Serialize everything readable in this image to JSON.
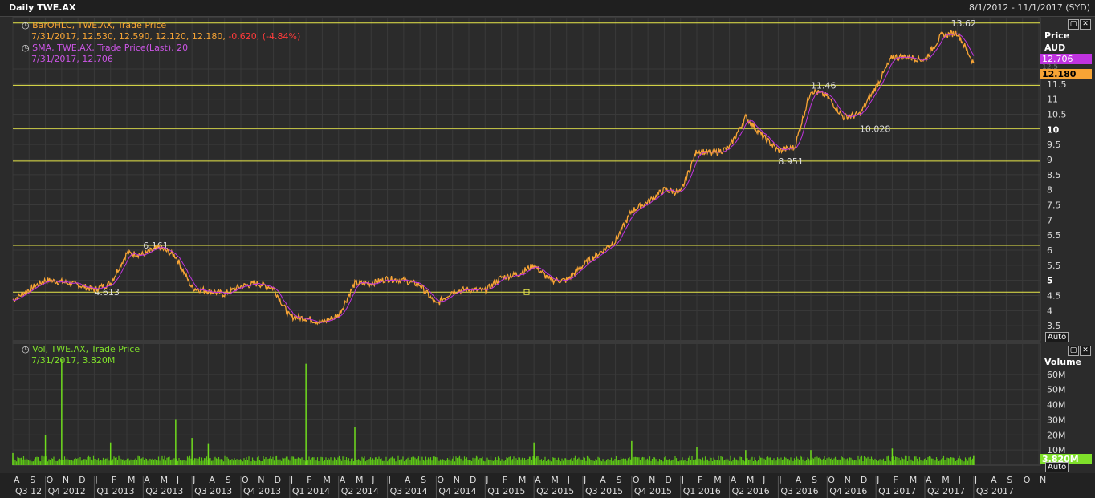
{
  "window": {
    "title": "Daily TWE.AX",
    "date_range": "8/1/2012 - 11/1/2017 (SYD)"
  },
  "price_panel": {
    "legend": [
      {
        "text": "BarOHLC, TWE.AX, Trade Price",
        "color": "#f7a435"
      },
      {
        "text": "7/31/2017, 12.530, 12.590, 12.120, 12.180,",
        "color": "#f7a435",
        "extra": " -0.620, (-4.84%)",
        "extra_color": "#ff3b3b"
      },
      {
        "text": "SMA, TWE.AX, Trade Price(Last),  20",
        "color": "#cc55e6"
      },
      {
        "text": "7/31/2017, 12.706",
        "color": "#cc55e6"
      }
    ],
    "axis_title": "Price",
    "axis_unit": "AUD",
    "auto_label": "Auto",
    "sma_tag": "12.706",
    "last_tag": "12.180",
    "hidden_tag": "12.5"
  },
  "volume_panel": {
    "legend": [
      {
        "text": "Vol, TWE.AX, Trade Price",
        "color": "#7fe02a"
      },
      {
        "text": "7/31/2017, 3.820M",
        "color": "#7fe02a"
      }
    ],
    "axis_title": "Volume",
    "last_tag": "3.820M",
    "auto_label": "Auto"
  },
  "chart_data": {
    "type": "line",
    "ylabel": "Price AUD",
    "ylim": [
      3.0,
      13.7
    ],
    "price_ticks": [
      "3.5",
      "4",
      "4.5",
      "5",
      "5.5",
      "6",
      "6.5",
      "7",
      "7.5",
      "8",
      "8.5",
      "9",
      "9.5",
      "10",
      "10.5",
      "11",
      "11.5",
      "12"
    ],
    "bold_ticks": [
      "5",
      "10"
    ],
    "months": [
      "A",
      "S",
      "O",
      "N",
      "D",
      "J",
      "F",
      "M",
      "A",
      "M",
      "J",
      "J",
      "A",
      "S",
      "O",
      "N",
      "D",
      "J",
      "F",
      "M",
      "A",
      "M",
      "J",
      "J",
      "A",
      "S",
      "O",
      "N",
      "D",
      "J",
      "F",
      "M",
      "A",
      "M",
      "J",
      "J",
      "A",
      "S",
      "O",
      "N",
      "D",
      "J",
      "F",
      "M",
      "A",
      "M",
      "J",
      "J",
      "A",
      "S",
      "O",
      "N",
      "D",
      "J",
      "F",
      "M",
      "A",
      "M",
      "J",
      "J",
      "A",
      "S",
      "O",
      "N"
    ],
    "quarters": [
      "Q3 12",
      "Q4 2012",
      "Q1 2013",
      "Q2 2013",
      "Q3 2013",
      "Q4 2013",
      "Q1 2014",
      "Q2 2014",
      "Q3 2014",
      "Q4 2014",
      "Q1 2015",
      "Q2 2015",
      "Q3 2015",
      "Q4 2015",
      "Q1 2016",
      "Q2 2016",
      "Q3 2016",
      "Q4 2016",
      "Q1 2017",
      "Q2 2017",
      "Q3 2017"
    ],
    "price_series": {
      "name": "TWE.AX Trade Price",
      "x": [
        "2012-08",
        "2012-09",
        "2012-10",
        "2012-11",
        "2012-12",
        "2013-01",
        "2013-02",
        "2013-03",
        "2013-04",
        "2013-05",
        "2013-06",
        "2013-07",
        "2013-08",
        "2013-09",
        "2013-10",
        "2013-11",
        "2013-12",
        "2014-01",
        "2014-02",
        "2014-03",
        "2014-04",
        "2014-05",
        "2014-06",
        "2014-07",
        "2014-08",
        "2014-09",
        "2014-10",
        "2014-11",
        "2014-12",
        "2015-01",
        "2015-02",
        "2015-03",
        "2015-04",
        "2015-05",
        "2015-06",
        "2015-07",
        "2015-08",
        "2015-09",
        "2015-10",
        "2015-11",
        "2015-12",
        "2016-01",
        "2016-02",
        "2016-03",
        "2016-04",
        "2016-05",
        "2016-06",
        "2016-07",
        "2016-08",
        "2016-09",
        "2016-10",
        "2016-11",
        "2016-12",
        "2017-01",
        "2017-02",
        "2017-03",
        "2017-04",
        "2017-05",
        "2017-06",
        "2017-07"
      ],
      "values": [
        4.35,
        4.7,
        5.0,
        4.95,
        4.85,
        4.7,
        4.9,
        5.9,
        5.85,
        6.1,
        5.8,
        4.75,
        4.65,
        4.55,
        4.8,
        4.9,
        4.75,
        3.8,
        3.75,
        3.6,
        3.85,
        4.9,
        4.9,
        5.05,
        5.0,
        4.85,
        4.2,
        4.65,
        4.7,
        4.65,
        5.1,
        5.2,
        5.5,
        5.0,
        5.0,
        5.5,
        5.9,
        6.3,
        7.3,
        7.6,
        8.0,
        7.9,
        9.3,
        9.2,
        9.4,
        10.4,
        9.8,
        9.3,
        9.4,
        11.3,
        11.1,
        10.4,
        10.5,
        11.4,
        12.4,
        12.4,
        12.3,
        13.1,
        13.2,
        12.2
      ]
    },
    "sma_series": {
      "name": "SMA 20",
      "last_value": 12.706
    },
    "levels": [
      {
        "value": 13.52,
        "label": ""
      },
      {
        "value": 11.46,
        "label": "11.46"
      },
      {
        "value": 10.028,
        "label": "10.028"
      },
      {
        "value": 8.951,
        "label": "8.951"
      },
      {
        "value": 6.161,
        "label": "6.161"
      },
      {
        "value": 4.613,
        "label": "4.613"
      }
    ],
    "peak_label": "13.62",
    "volume": {
      "ylim": [
        0,
        70
      ],
      "ticks": [
        "10M",
        "20M",
        "30M",
        "40M",
        "50M",
        "60M"
      ],
      "spikes": [
        {
          "x": "2012-08",
          "value": 8
        },
        {
          "x": "2012-10",
          "value": 20
        },
        {
          "x": "2012-11",
          "value": 70
        },
        {
          "x": "2013-02",
          "value": 15
        },
        {
          "x": "2013-06",
          "value": 30
        },
        {
          "x": "2013-07",
          "value": 18
        },
        {
          "x": "2013-08",
          "value": 14
        },
        {
          "x": "2014-02",
          "value": 67
        },
        {
          "x": "2014-05",
          "value": 25
        },
        {
          "x": "2015-04",
          "value": 15
        },
        {
          "x": "2015-10",
          "value": 16
        },
        {
          "x": "2016-02",
          "value": 12
        },
        {
          "x": "2016-05",
          "value": 10
        },
        {
          "x": "2016-09",
          "value": 10
        },
        {
          "x": "2017-02",
          "value": 11
        },
        {
          "x": "2017-07",
          "value": 6
        }
      ]
    }
  }
}
